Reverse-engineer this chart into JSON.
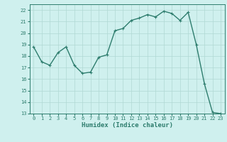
{
  "x": [
    0,
    1,
    2,
    3,
    4,
    5,
    6,
    7,
    8,
    9,
    10,
    11,
    12,
    13,
    14,
    15,
    16,
    17,
    18,
    19,
    20,
    21,
    22,
    23
  ],
  "y": [
    18.8,
    17.5,
    17.2,
    18.3,
    18.8,
    17.2,
    16.5,
    16.6,
    17.9,
    18.1,
    20.2,
    20.4,
    21.1,
    21.3,
    21.6,
    21.4,
    21.9,
    21.7,
    21.1,
    21.8,
    19.0,
    15.6,
    13.1,
    13.0
  ],
  "line_color": "#2e7d6e",
  "marker": "+",
  "marker_size": 3,
  "background_color": "#cff0ee",
  "grid_color": "#b0d8d4",
  "xlabel": "Humidex (Indice chaleur)",
  "xlim": [
    -0.5,
    23.5
  ],
  "ylim": [
    13,
    22.5
  ],
  "yticks": [
    13,
    14,
    15,
    16,
    17,
    18,
    19,
    20,
    21,
    22
  ],
  "xticks": [
    0,
    1,
    2,
    3,
    4,
    5,
    6,
    7,
    8,
    9,
    10,
    11,
    12,
    13,
    14,
    15,
    16,
    17,
    18,
    19,
    20,
    21,
    22,
    23
  ],
  "tick_fontsize": 5.0,
  "xlabel_fontsize": 6.5,
  "line_width": 1.0
}
